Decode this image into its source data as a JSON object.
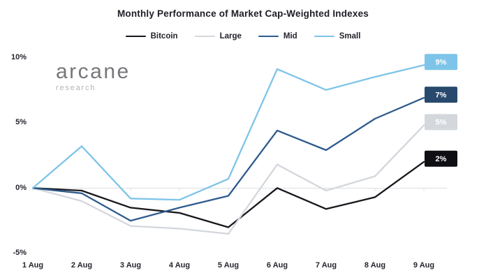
{
  "logo": {
    "brand": "arcane",
    "sub": "research"
  },
  "chart_data": {
    "type": "line",
    "title": "Monthly Performance of Market Cap-Weighted Indexes",
    "unit": "%",
    "categories": [
      "1 Aug",
      "2 Aug",
      "3 Aug",
      "4 Aug",
      "5 Aug",
      "6 Aug",
      "7 Aug",
      "8 Aug",
      "9 Aug"
    ],
    "series": [
      {
        "name": "Bitcoin",
        "color": "#17171d",
        "badge_color": "#0e0e13",
        "badge_text_color": "#ffffff",
        "end_label": "2%",
        "values": [
          0,
          -0.2,
          -1.5,
          -1.9,
          -3.0,
          0.0,
          -1.6,
          -0.7,
          2.0
        ]
      },
      {
        "name": "Large",
        "color": "#d3d7dc",
        "badge_color": "#d4d8dd",
        "badge_text_color": "#ffffff",
        "end_label": "5%",
        "values": [
          0,
          -1.0,
          -2.9,
          -3.1,
          -3.5,
          1.8,
          -0.2,
          0.9,
          4.8
        ]
      },
      {
        "name": "Mid",
        "color": "#2f5b8d",
        "badge_color": "#27496d",
        "badge_text_color": "#ffffff",
        "end_label": "7%",
        "values": [
          0,
          -0.4,
          -2.5,
          -1.5,
          -0.6,
          4.4,
          2.9,
          5.3,
          6.9
        ]
      },
      {
        "name": "Small",
        "color": "#7ec4e8",
        "badge_color": "#7ec4e8",
        "badge_text_color": "#ffffff",
        "end_label": "9%",
        "values": [
          0,
          3.2,
          -0.8,
          -0.9,
          0.7,
          9.1,
          7.5,
          8.5,
          9.4
        ]
      }
    ],
    "y_ticks": [
      {
        "label": "10%",
        "value": 10
      },
      {
        "label": "5%",
        "value": 5
      },
      {
        "label": "0%",
        "value": 0
      },
      {
        "label": "-5%",
        "value": -5
      }
    ],
    "ylim": [
      -5,
      10
    ],
    "legend_position": "top-center",
    "grid": "zero-baseline-only",
    "baseline_color": "#dcdee1"
  }
}
